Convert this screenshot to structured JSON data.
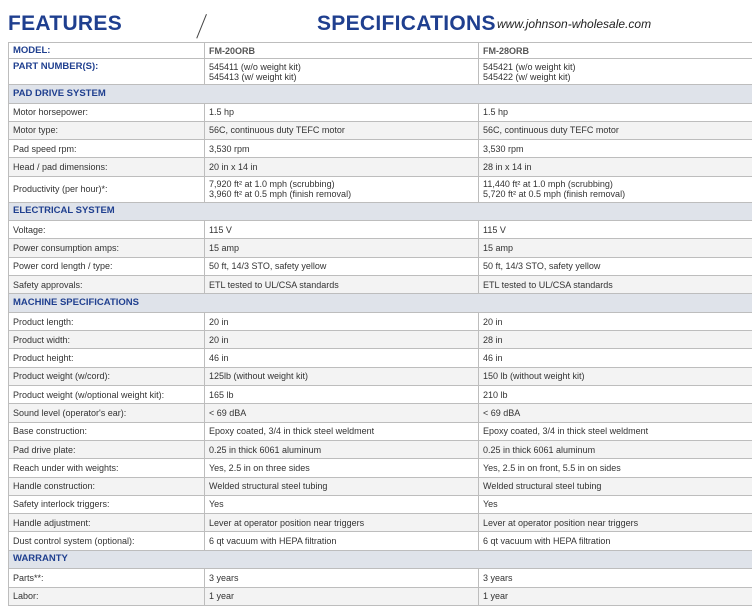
{
  "header": {
    "features": "FEATURES",
    "specifications": "SPECIFICATIONS",
    "url": "www.johnson-wholesale.com"
  },
  "model": {
    "label": "MODEL:",
    "col1": "FM-20ORB",
    "col2": "FM-28ORB"
  },
  "part_numbers": {
    "label": "PART NUMBER(S):",
    "col1": [
      "545411 (w/o weight kit)",
      "545413 (w/ weight kit)"
    ],
    "col2": [
      "545421 (w/o weight kit)",
      "545422 (w/ weight kit)"
    ]
  },
  "sections": {
    "pad_drive": {
      "title": "PAD DRIVE SYSTEM",
      "rows": [
        {
          "label": "Motor horsepower:",
          "col1": "1.5 hp",
          "col2": "1.5 hp"
        },
        {
          "label": "Motor type:",
          "col1": "56C, continuous duty TEFC motor",
          "col2": "56C, continuous duty TEFC motor"
        },
        {
          "label": "Pad speed rpm:",
          "col1": "3,530 rpm",
          "col2": "3,530 rpm"
        },
        {
          "label": "Head / pad dimensions:",
          "col1": "20 in x 14 in",
          "col2": "28 in x 14 in"
        }
      ],
      "productivity": {
        "label": "Productivity (per hour)*:",
        "col1": [
          "7,920 ft² at 1.0 mph (scrubbing)",
          "3,960 ft² at 0.5 mph (finish removal)"
        ],
        "col2": [
          "11,440 ft² at 1.0 mph (scrubbing)",
          "5,720 ft² at 0.5 mph (finish removal)"
        ]
      }
    },
    "electrical": {
      "title": "ELECTRICAL SYSTEM",
      "rows": [
        {
          "label": "Voltage:",
          "col1": "115 V",
          "col2": "115 V"
        },
        {
          "label": "Power consumption amps:",
          "col1": "15 amp",
          "col2": "15 amp"
        },
        {
          "label": "Power cord length / type:",
          "col1": "50 ft, 14/3 STO, safety yellow",
          "col2": "50 ft, 14/3 STO, safety yellow"
        },
        {
          "label": "Safety approvals:",
          "col1": "ETL tested to UL/CSA standards",
          "col2": "ETL tested to UL/CSA standards"
        }
      ]
    },
    "machine": {
      "title": "MACHINE SPECIFICATIONS",
      "rows": [
        {
          "label": "Product length:",
          "col1": "20 in",
          "col2": "20 in"
        },
        {
          "label": "Product width:",
          "col1": "20 in",
          "col2": "28 in"
        },
        {
          "label": "Product height:",
          "col1": "46 in",
          "col2": "46 in"
        },
        {
          "label": "Product weight (w/cord):",
          "col1": "125lb (without weight kit)",
          "col2": "150 lb (without weight kit)"
        },
        {
          "label": "Product weight (w/optional weight kit):",
          "col1": "165 lb",
          "col2": "210 lb"
        },
        {
          "label": "Sound level (operator's ear):",
          "col1": "< 69 dBA",
          "col2": "< 69 dBA"
        },
        {
          "label": "Base construction:",
          "col1": "Epoxy coated, 3/4 in thick steel weldment",
          "col2": "Epoxy coated, 3/4 in thick steel weldment"
        },
        {
          "label": "Pad drive plate:",
          "col1": "0.25 in thick 6061 aluminum",
          "col2": "0.25 in thick 6061 aluminum"
        },
        {
          "label": "Reach under with weights:",
          "col1": "Yes, 2.5 in on three sides",
          "col2": "Yes, 2.5 in on front, 5.5 in on sides"
        },
        {
          "label": "Handle construction:",
          "col1": "Welded structural steel tubing",
          "col2": "Welded structural steel tubing"
        },
        {
          "label": "Safety interlock triggers:",
          "col1": "Yes",
          "col2": "Yes"
        },
        {
          "label": "Handle adjustment:",
          "col1": "Lever at operator position near triggers",
          "col2": "Lever at operator position near triggers"
        },
        {
          "label": "Dust control system (optional):",
          "col1": "6 qt vacuum with HEPA filtration",
          "col2": "6 qt vacuum with HEPA filtration"
        }
      ]
    },
    "warranty": {
      "title": "WARRANTY",
      "rows": [
        {
          "label": "Parts**:",
          "col1": "3 years",
          "col2": "3 years"
        },
        {
          "label": "Labor:",
          "col1": "1 year",
          "col2": "1 year"
        }
      ]
    }
  }
}
